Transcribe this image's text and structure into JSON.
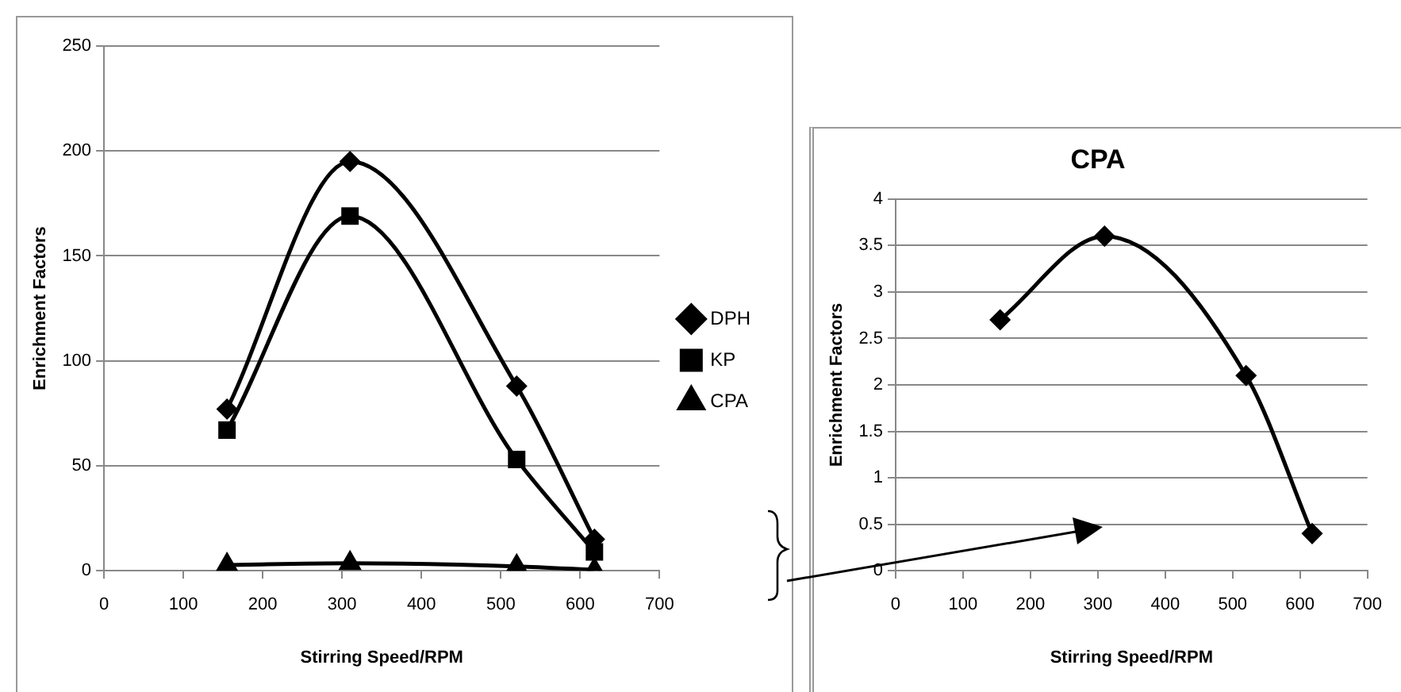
{
  "chart_data": [
    {
      "type": "line",
      "xlabel": "Stirring Speed/RPM",
      "ylabel": "Enrichment Factors",
      "xlim": [
        0,
        700
      ],
      "xticks": [
        0,
        100,
        200,
        300,
        400,
        500,
        600,
        700
      ],
      "ylim": [
        0,
        250
      ],
      "yticks": [
        0,
        50,
        100,
        150,
        200,
        250
      ],
      "grid": "y",
      "legend": "right",
      "series": [
        {
          "name": "DPH",
          "color": "#000000",
          "marker": "diamond",
          "x": [
            155,
            310,
            520,
            618
          ],
          "values": [
            77,
            195,
            88,
            15
          ]
        },
        {
          "name": "KP",
          "color": "#000000",
          "marker": "square",
          "x": [
            155,
            310,
            520,
            618
          ],
          "values": [
            67,
            169,
            53,
            9
          ]
        },
        {
          "name": "CPA",
          "color": "#000000",
          "marker": "triangle",
          "x": [
            155,
            310,
            520,
            618
          ],
          "values": [
            2.7,
            3.6,
            2.1,
            0.4
          ]
        }
      ]
    },
    {
      "type": "line",
      "title": "CPA",
      "xlabel": "Stirring Speed/RPM",
      "ylabel": "Enrichment Factors",
      "xlim": [
        0,
        700
      ],
      "xticks": [
        0,
        100,
        200,
        300,
        400,
        500,
        600,
        700
      ],
      "ylim": [
        0,
        4
      ],
      "yticks": [
        0,
        0.5,
        1,
        1.5,
        2,
        2.5,
        3,
        3.5,
        4
      ],
      "grid": "y",
      "legend": false,
      "series": [
        {
          "color": "#000000",
          "marker": "diamond",
          "x": [
            155,
            310,
            520,
            618
          ],
          "values": [
            2.7,
            3.6,
            2.1,
            0.4
          ]
        }
      ]
    }
  ]
}
